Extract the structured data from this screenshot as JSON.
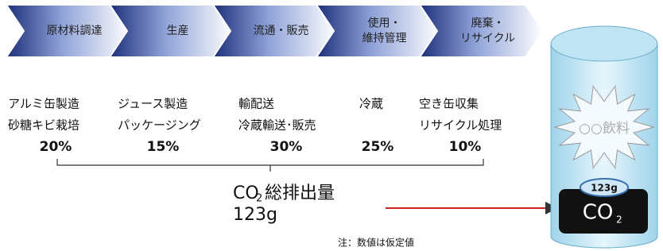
{
  "stages": [
    {
      "label": [
        "原材料調達"
      ],
      "details": [
        "アルミ缶製造",
        "砂糖キビ栽培"
      ],
      "share": "20%"
    },
    {
      "label": [
        "生産"
      ],
      "details": [
        "ジュース製造",
        "パッケージング"
      ],
      "share": "15%"
    },
    {
      "label": [
        "流通・販売"
      ],
      "details": [
        "輸配送",
        "冷蔵輸送･販売"
      ],
      "share": "30%"
    },
    {
      "label": [
        "使用・",
        "維持管理"
      ],
      "details": [
        "冷蔵"
      ],
      "share": "25%"
    },
    {
      "label": [
        "廃棄・",
        "リサイクル"
      ],
      "details": [
        "空き缶収集",
        "リサイクル処理"
      ],
      "share": "10%"
    }
  ],
  "total": {
    "co": "CO",
    "sub": "2",
    "label": "総排出量",
    "amount": "123g"
  },
  "note": "注：数値は仮定値",
  "can": {
    "name": "○○飲料",
    "badge_amount": "123g",
    "badge_co": "CO",
    "badge_sub": "2"
  }
}
